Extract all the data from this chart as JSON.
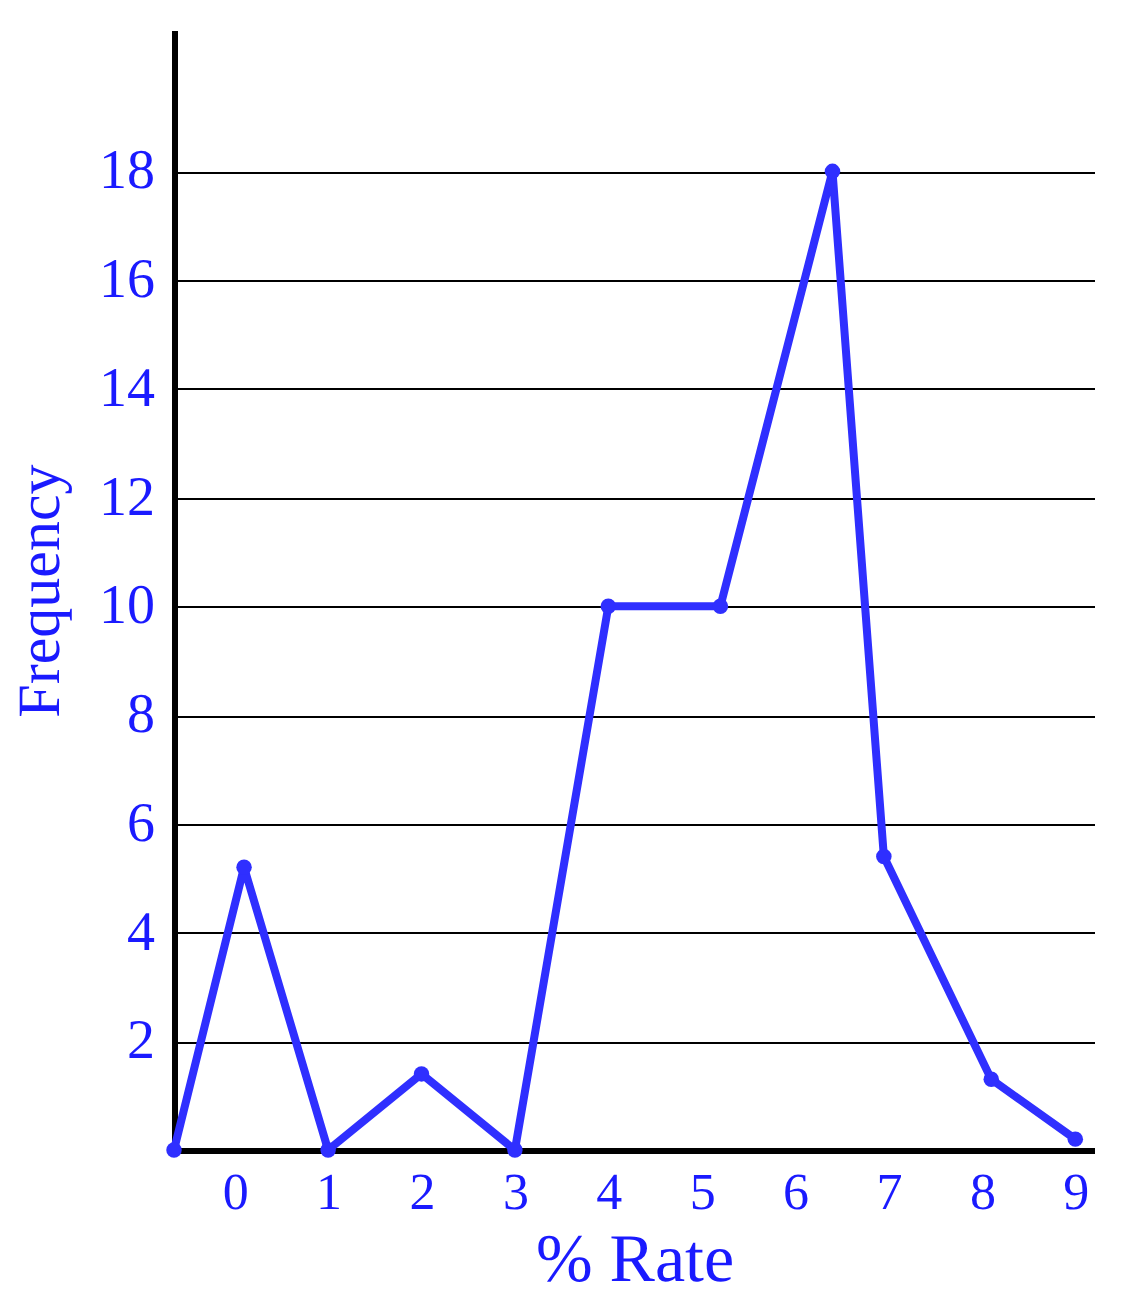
{
  "chart_data": {
    "type": "line",
    "xlabel": "% Rate",
    "ylabel": "Frequency",
    "x": [
      -0.65,
      0.1,
      1,
      2,
      3,
      4,
      5.2,
      6.4,
      6.95,
      8.1,
      9
    ],
    "series": [
      {
        "color": "#2f2fff",
        "values": [
          0,
          5.2,
          0,
          1.4,
          0,
          10,
          10,
          18,
          5.4,
          1.3,
          0.2
        ]
      }
    ],
    "xlim": [
      -0.65,
      9.2
    ],
    "ylim": [
      0,
      20.6
    ],
    "xticks": [
      0,
      1,
      2,
      3,
      4,
      5,
      6,
      7,
      8,
      9
    ],
    "yticks": [
      2,
      4,
      6,
      8,
      10,
      12,
      14,
      16,
      18
    ],
    "grid": "y",
    "marker": "circle",
    "line_style": "solid"
  }
}
